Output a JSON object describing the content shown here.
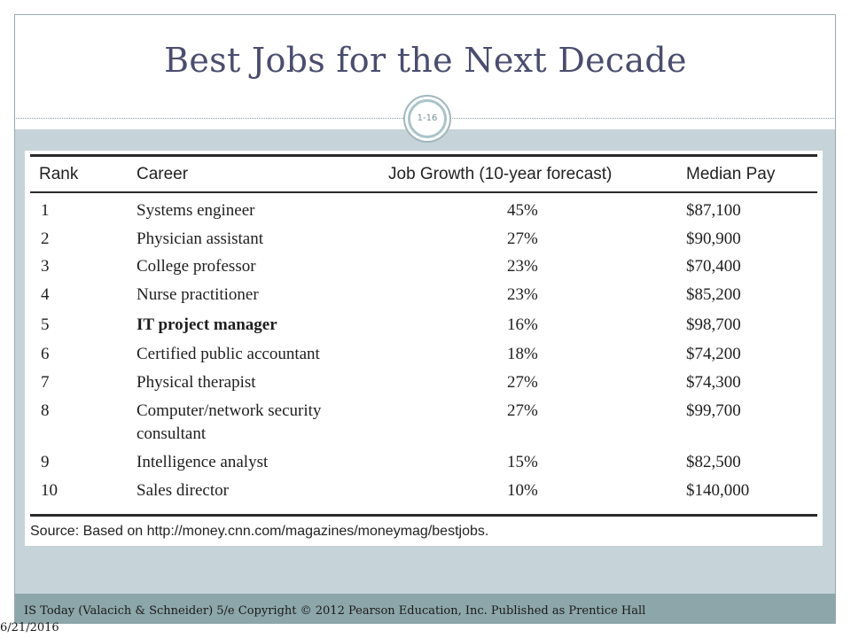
{
  "slide": {
    "title": "Best Jobs for the Next Decade",
    "slide_number": "1-16"
  },
  "table": {
    "headers": [
      "Rank",
      "Career",
      "Job Growth (10-year forecast)",
      "Median Pay"
    ],
    "rows": [
      {
        "rank": "1",
        "career": "Systems engineer",
        "career_line2": "",
        "growth": "45%",
        "pay": "$87,100",
        "bold": false
      },
      {
        "rank": "2",
        "career": "Physician assistant",
        "career_line2": "",
        "growth": "27%",
        "pay": "$90,900",
        "bold": false
      },
      {
        "rank": "3",
        "career": "College professor",
        "career_line2": "",
        "growth": "23%",
        "pay": "$70,400",
        "bold": false
      },
      {
        "rank": "4",
        "career": "Nurse practitioner",
        "career_line2": "",
        "growth": "23%",
        "pay": "$85,200",
        "bold": false
      },
      {
        "rank": "5",
        "career": "IT project manager",
        "career_line2": "",
        "growth": "16%",
        "pay": "$98,700",
        "bold": true
      },
      {
        "rank": "6",
        "career": "Certified public accountant",
        "career_line2": "",
        "growth": "18%",
        "pay": "$74,200",
        "bold": false
      },
      {
        "rank": "7",
        "career": "Physical therapist",
        "career_line2": "",
        "growth": "27%",
        "pay": "$74,300",
        "bold": false
      },
      {
        "rank": "8",
        "career": "Computer/network security",
        "career_line2": "consultant",
        "growth": "27%",
        "pay": "$99,700",
        "bold": false
      },
      {
        "rank": "9",
        "career": "Intelligence analyst",
        "career_line2": "",
        "growth": "15%",
        "pay": "$82,500",
        "bold": false
      },
      {
        "rank": "10",
        "career": "Sales director",
        "career_line2": "",
        "growth": "10%",
        "pay": "$140,000",
        "bold": false
      }
    ],
    "source": "Source: Based on http://money.cnn.com/magazines/moneymag/bestjobs."
  },
  "footer": {
    "citation": "IS Today (Valacich & Schneider) 5/e      Copyright © 2012 Pearson Education, Inc. Published as Prentice Hall",
    "date": "6/21/2016"
  },
  "colors": {
    "title": "#4a4d6e",
    "band": "#c6d3d8",
    "footer_bar": "#8ca6a9"
  }
}
